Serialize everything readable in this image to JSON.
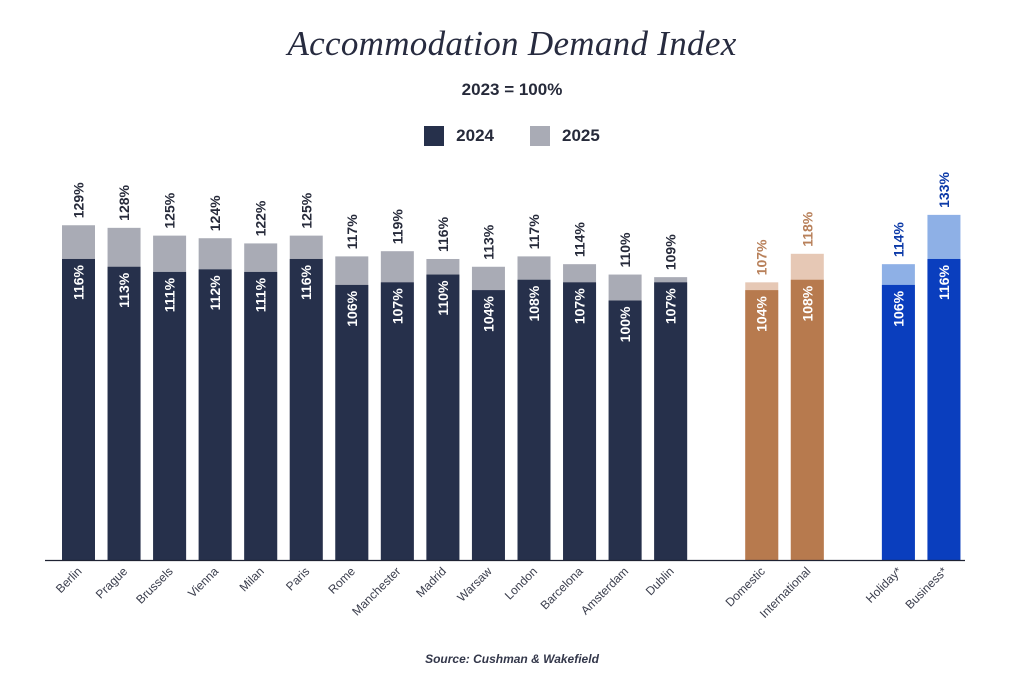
{
  "chart_data": {
    "type": "bar",
    "stacked_overlay": true,
    "title": "Accommodation Demand Index",
    "subtitle": "2023 = 100%",
    "xlabel": "",
    "ylabel": "",
    "ylim": [
      0,
      140
    ],
    "grid": false,
    "legend": {
      "placement": "top-center",
      "entries": [
        {
          "name": "2024",
          "color": "#26304b"
        },
        {
          "name": "2025",
          "color": "#a9abb5"
        }
      ]
    },
    "source": "Source: Cushman & Wakefield",
    "groups": [
      {
        "name": "cities",
        "color_2024": "#26304b",
        "color_2025": "#a9abb5",
        "label_color": "#262a3a",
        "categories": [
          "Berlin",
          "Prague",
          "Brussels",
          "Vienna",
          "Milan",
          "Paris",
          "Rome",
          "Manchester",
          "Madrid",
          "Warsaw",
          "London",
          "Barcelona",
          "Amsterdam",
          "Dublin"
        ],
        "values_2024": [
          116,
          113,
          111,
          112,
          111,
          116,
          106,
          107,
          110,
          104,
          108,
          107,
          100,
          107
        ],
        "values_2025": [
          129,
          128,
          125,
          124,
          122,
          125,
          117,
          119,
          116,
          113,
          117,
          114,
          110,
          109
        ]
      },
      {
        "name": "origin",
        "color_2024": "#b77a4e",
        "color_2025": "#e6c8b5",
        "label_color": "#b8805a",
        "categories": [
          "Domestic",
          "International"
        ],
        "values_2024": [
          104,
          108
        ],
        "values_2025": [
          107,
          118
        ]
      },
      {
        "name": "purpose",
        "color_2024": "#0a3ebe",
        "color_2025": "#8eb0e6",
        "label_color": "#0c3aa8",
        "categories": [
          "Holiday*",
          "Business*"
        ],
        "values_2024": [
          106,
          116
        ],
        "values_2025": [
          114,
          133
        ]
      }
    ],
    "value_suffix": "%"
  }
}
